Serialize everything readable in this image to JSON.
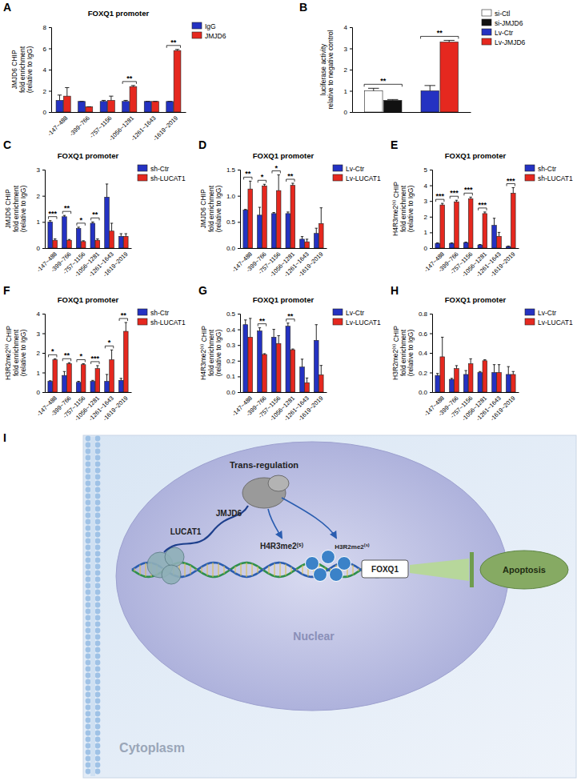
{
  "chart_data": [
    {
      "type": "bar",
      "panel": "A",
      "title": "FOXQ1 promoter",
      "ylabel": [
        "JMJD6 CHIP",
        "fold enrichment",
        "(relative to IgG)"
      ],
      "categories": [
        "-147~488",
        "-399~766",
        "-757~1156",
        "-1056~1281",
        "-1261~1643",
        "-1619~2019"
      ],
      "series": [
        {
          "name": "IgG",
          "color": "#2432c2",
          "values": [
            1.1,
            1.0,
            1.0,
            1.0,
            1.0,
            1.0
          ],
          "errors": [
            0.5,
            0,
            0.1,
            0.1,
            0,
            0
          ]
        },
        {
          "name": "JMJD6",
          "color": "#e5281f",
          "values": [
            1.5,
            0.5,
            1.1,
            2.4,
            1.0,
            5.8
          ],
          "errors": [
            0.8,
            0,
            0.4,
            0.1,
            0,
            0.1
          ]
        }
      ],
      "ylim": [
        0,
        8
      ],
      "yticks": [
        0,
        2,
        4,
        6,
        8
      ],
      "legend": "right",
      "annotations": [
        {
          "index": 3,
          "label": "**"
        },
        {
          "index": 5,
          "label": "**"
        }
      ]
    },
    {
      "type": "bar",
      "panel": "B",
      "ylabel": [
        "luciferase activity",
        "relative to negative control"
      ],
      "categories": [
        null,
        null
      ],
      "series": [
        {
          "name": "si-Ctl",
          "color": "#ffffff",
          "values": [
            1.0,
            null
          ],
          "errors": [
            0.12,
            null
          ]
        },
        {
          "name": "si-JMJD6",
          "color": "#111111",
          "values": [
            0.55,
            null
          ],
          "errors": [
            0.04,
            null
          ]
        },
        {
          "name": "Lv-Ctr",
          "color": "#2432c2",
          "values": [
            null,
            1.0
          ],
          "errors": [
            null,
            0.25
          ]
        },
        {
          "name": "Lv-JMJD6",
          "color": "#e5281f",
          "values": [
            null,
            3.3
          ],
          "errors": [
            null,
            0.08
          ]
        }
      ],
      "ylim": [
        0,
        4
      ],
      "yticks": [
        0,
        1,
        2,
        3,
        4
      ],
      "legend": "upper right",
      "annotations": [
        {
          "index": 0,
          "label": "**"
        },
        {
          "index": 1,
          "label": "**"
        }
      ]
    },
    {
      "type": "bar",
      "panel": "C",
      "title": "FOXQ1 promoter",
      "ylabel": [
        "JMJD6 CHIP",
        "fold enrichment",
        "(relative to IgG)"
      ],
      "categories": [
        "-147~488",
        "-399~766",
        "-757~1156",
        "-1056~1281",
        "-1261~1643",
        "-1619~2019"
      ],
      "series": [
        {
          "name": "sh-Ctr",
          "color": "#2432c2",
          "values": [
            1.0,
            1.2,
            0.75,
            0.95,
            1.95,
            0.45
          ],
          "errors": [
            0.05,
            0.05,
            0.05,
            0.05,
            0.5,
            0.1
          ]
        },
        {
          "name": "sh-LUCAT1",
          "color": "#e5281f",
          "values": [
            0.3,
            0.3,
            0.25,
            0.3,
            0.65,
            0.45
          ],
          "errors": [
            0.05,
            0.03,
            0.03,
            0.05,
            0.3,
            0.1
          ]
        }
      ],
      "ylim": [
        0,
        3
      ],
      "yticks": [
        0,
        1,
        2,
        3
      ],
      "legend": "right",
      "annotations": [
        {
          "index": 0,
          "label": "***"
        },
        {
          "index": 1,
          "label": "**"
        },
        {
          "index": 2,
          "label": "*"
        },
        {
          "index": 3,
          "label": "**"
        }
      ]
    },
    {
      "type": "bar",
      "panel": "D",
      "title": "FOXQ1 promoter",
      "ylabel": [
        "JMJD6 CHIP",
        "fold enrichment",
        "(relative to IgG)"
      ],
      "categories": [
        "-147~488",
        "-399~766",
        "-757~1156",
        "-1056~1281",
        "-1261~1643",
        "-1619~2019"
      ],
      "series": [
        {
          "name": "Lv-Ctr",
          "color": "#2432c2",
          "values": [
            0.73,
            0.63,
            0.66,
            0.66,
            0.17,
            0.28
          ],
          "errors": [
            0.01,
            0.15,
            0.02,
            0.03,
            0.05,
            0.1
          ]
        },
        {
          "name": "Lv-LUCAT1",
          "color": "#e5281f",
          "values": [
            1.13,
            1.19,
            1.1,
            1.2,
            0.12,
            0.47
          ],
          "errors": [
            0.15,
            0.03,
            0.3,
            0.04,
            0.05,
            0.3
          ]
        }
      ],
      "ylim": [
        0,
        1.5
      ],
      "yticks": [
        {
          "value": 0,
          "label": "0.0"
        },
        0.5,
        {
          "value": 1,
          "label": "1.0"
        },
        1.5
      ],
      "legend": "right",
      "annotations": [
        {
          "index": 0,
          "label": "**"
        },
        {
          "index": 1,
          "label": "*"
        },
        {
          "index": 2,
          "label": "*"
        },
        {
          "index": 3,
          "label": "**"
        }
      ]
    },
    {
      "type": "bar",
      "panel": "E",
      "title": "FOXQ1 promoter",
      "ylabel": [
        "H4R3me2(s) CHIP",
        "fold enrichment",
        "(relative to IgG)"
      ],
      "categories": [
        "-147~488",
        "-399~766",
        "-757~1156",
        "-1056~1281",
        "-1261~1643",
        "-1619~2019"
      ],
      "series": [
        {
          "name": "sh-Ctr",
          "color": "#2432c2",
          "values": [
            0.3,
            0.3,
            0.35,
            0.2,
            1.45,
            0.1
          ],
          "errors": [
            0.03,
            0.03,
            0.03,
            0.03,
            0.45,
            0.03
          ]
        },
        {
          "name": "sh-LUCAT1",
          "color": "#e5281f",
          "values": [
            2.75,
            2.95,
            3.15,
            2.2,
            0.75,
            3.5
          ],
          "errors": [
            0.1,
            0.1,
            0.1,
            0.1,
            0.25,
            0.35
          ]
        }
      ],
      "ylim": [
        0,
        5
      ],
      "yticks": [
        0,
        1,
        2,
        3,
        4,
        5
      ],
      "legend": "right",
      "annotations": [
        {
          "index": 0,
          "label": "***"
        },
        {
          "index": 1,
          "label": "***"
        },
        {
          "index": 2,
          "label": "***"
        },
        {
          "index": 3,
          "label": "***"
        },
        {
          "index": 5,
          "label": "***"
        }
      ]
    },
    {
      "type": "bar",
      "panel": "F",
      "title": "FOXQ1 promoter",
      "ylabel": [
        "H3R2me2(s) CHIP",
        "fold enrichment",
        "(relative to IgG)"
      ],
      "categories": [
        "-147~488",
        "-399~766",
        "-757~1156",
        "-1056~1281",
        "-1261~1643",
        "-1619~2019"
      ],
      "series": [
        {
          "name": "sh-Ctr",
          "color": "#2432c2",
          "values": [
            0.55,
            0.85,
            0.5,
            0.55,
            0.55,
            0.6
          ],
          "errors": [
            0.03,
            0.2,
            0.05,
            0.05,
            0.35,
            0.1
          ]
        },
        {
          "name": "sh-LUCAT1",
          "color": "#e5281f",
          "values": [
            1.65,
            1.45,
            1.4,
            1.2,
            1.65,
            3.1
          ],
          "errors": [
            0.05,
            0.05,
            0.05,
            0.15,
            0.5,
            0.45
          ]
        }
      ],
      "ylim": [
        0,
        4
      ],
      "yticks": [
        0,
        1,
        2,
        3,
        4
      ],
      "legend": "right",
      "annotations": [
        {
          "index": 0,
          "label": "*"
        },
        {
          "index": 1,
          "label": "**"
        },
        {
          "index": 2,
          "label": "*"
        },
        {
          "index": 3,
          "label": "***"
        },
        {
          "index": 4,
          "label": "*"
        },
        {
          "index": 5,
          "label": "**"
        }
      ]
    },
    {
      "type": "bar",
      "panel": "G",
      "title": "FOXQ1 promoter",
      "ylabel": [
        "H4R3me2(s) CHIP",
        "fold enrichment",
        "(relative to IgG)"
      ],
      "categories": [
        "-147~488",
        "-399~766",
        "-757~1156",
        "-1056~1281",
        "-1261~1643",
        "-1619~2019"
      ],
      "series": [
        {
          "name": "Lv-Ctr",
          "color": "#2432c2",
          "values": [
            0.43,
            0.39,
            0.35,
            0.42,
            0.16,
            0.33
          ],
          "errors": [
            0.03,
            0.02,
            0.05,
            0.02,
            0.05,
            0.1
          ]
        },
        {
          "name": "Lv-LUCAT1",
          "color": "#e5281f",
          "values": [
            0.35,
            0.24,
            0.31,
            0.27,
            0.06,
            0.11
          ],
          "errors": [
            0.12,
            0.005,
            0.05,
            0.005,
            0.03,
            0.06
          ]
        }
      ],
      "ylim": [
        0,
        0.5
      ],
      "yticks": [
        {
          "value": 0,
          "label": "0.0"
        },
        0.1,
        0.2,
        0.3,
        0.4,
        0.5
      ],
      "legend": "right",
      "annotations": [
        {
          "index": 1,
          "label": "**"
        },
        {
          "index": 3,
          "label": "**"
        }
      ]
    },
    {
      "type": "bar",
      "panel": "H",
      "title": "FOXQ1 promoter",
      "ylabel": [
        "H3R2me2(s) CHIP",
        "fold enrichment",
        "(relative to IgG)"
      ],
      "categories": [
        "-147~488",
        "-399~766",
        "-757~1156",
        "-1056~1281",
        "-1261~1643",
        "-1619~2019"
      ],
      "series": [
        {
          "name": "Lv-Ctr",
          "color": "#2432c2",
          "values": [
            0.17,
            0.13,
            0.18,
            0.2,
            0.2,
            0.18
          ],
          "errors": [
            0.02,
            0.01,
            0.04,
            0.01,
            0.08,
            0.08
          ]
        },
        {
          "name": "Lv-LUCAT1",
          "color": "#e5281f",
          "values": [
            0.36,
            0.24,
            0.29,
            0.32,
            0.2,
            0.18
          ],
          "errors": [
            0.2,
            0.03,
            0.05,
            0.01,
            0.08,
            0.03
          ]
        }
      ],
      "ylim": [
        0,
        0.8
      ],
      "yticks": [
        {
          "value": 0,
          "label": "0.0"
        },
        0.2,
        0.4,
        0.6,
        0.8
      ],
      "legend": "right"
    }
  ],
  "diagram": {
    "panel": "I",
    "labels": {
      "trans_regulation": "Trans-regulation",
      "jmjd6": "JMJD6",
      "lucat1": "LUCAT1",
      "h4r3": "H4R3me2(s)",
      "h3r2": "H3R2me2(s)",
      "foxq1": "FOXQ1",
      "apoptosis": "Apoptosis",
      "nuclear": "Nuclear",
      "cytoplasm": "Cytoplasm"
    }
  }
}
